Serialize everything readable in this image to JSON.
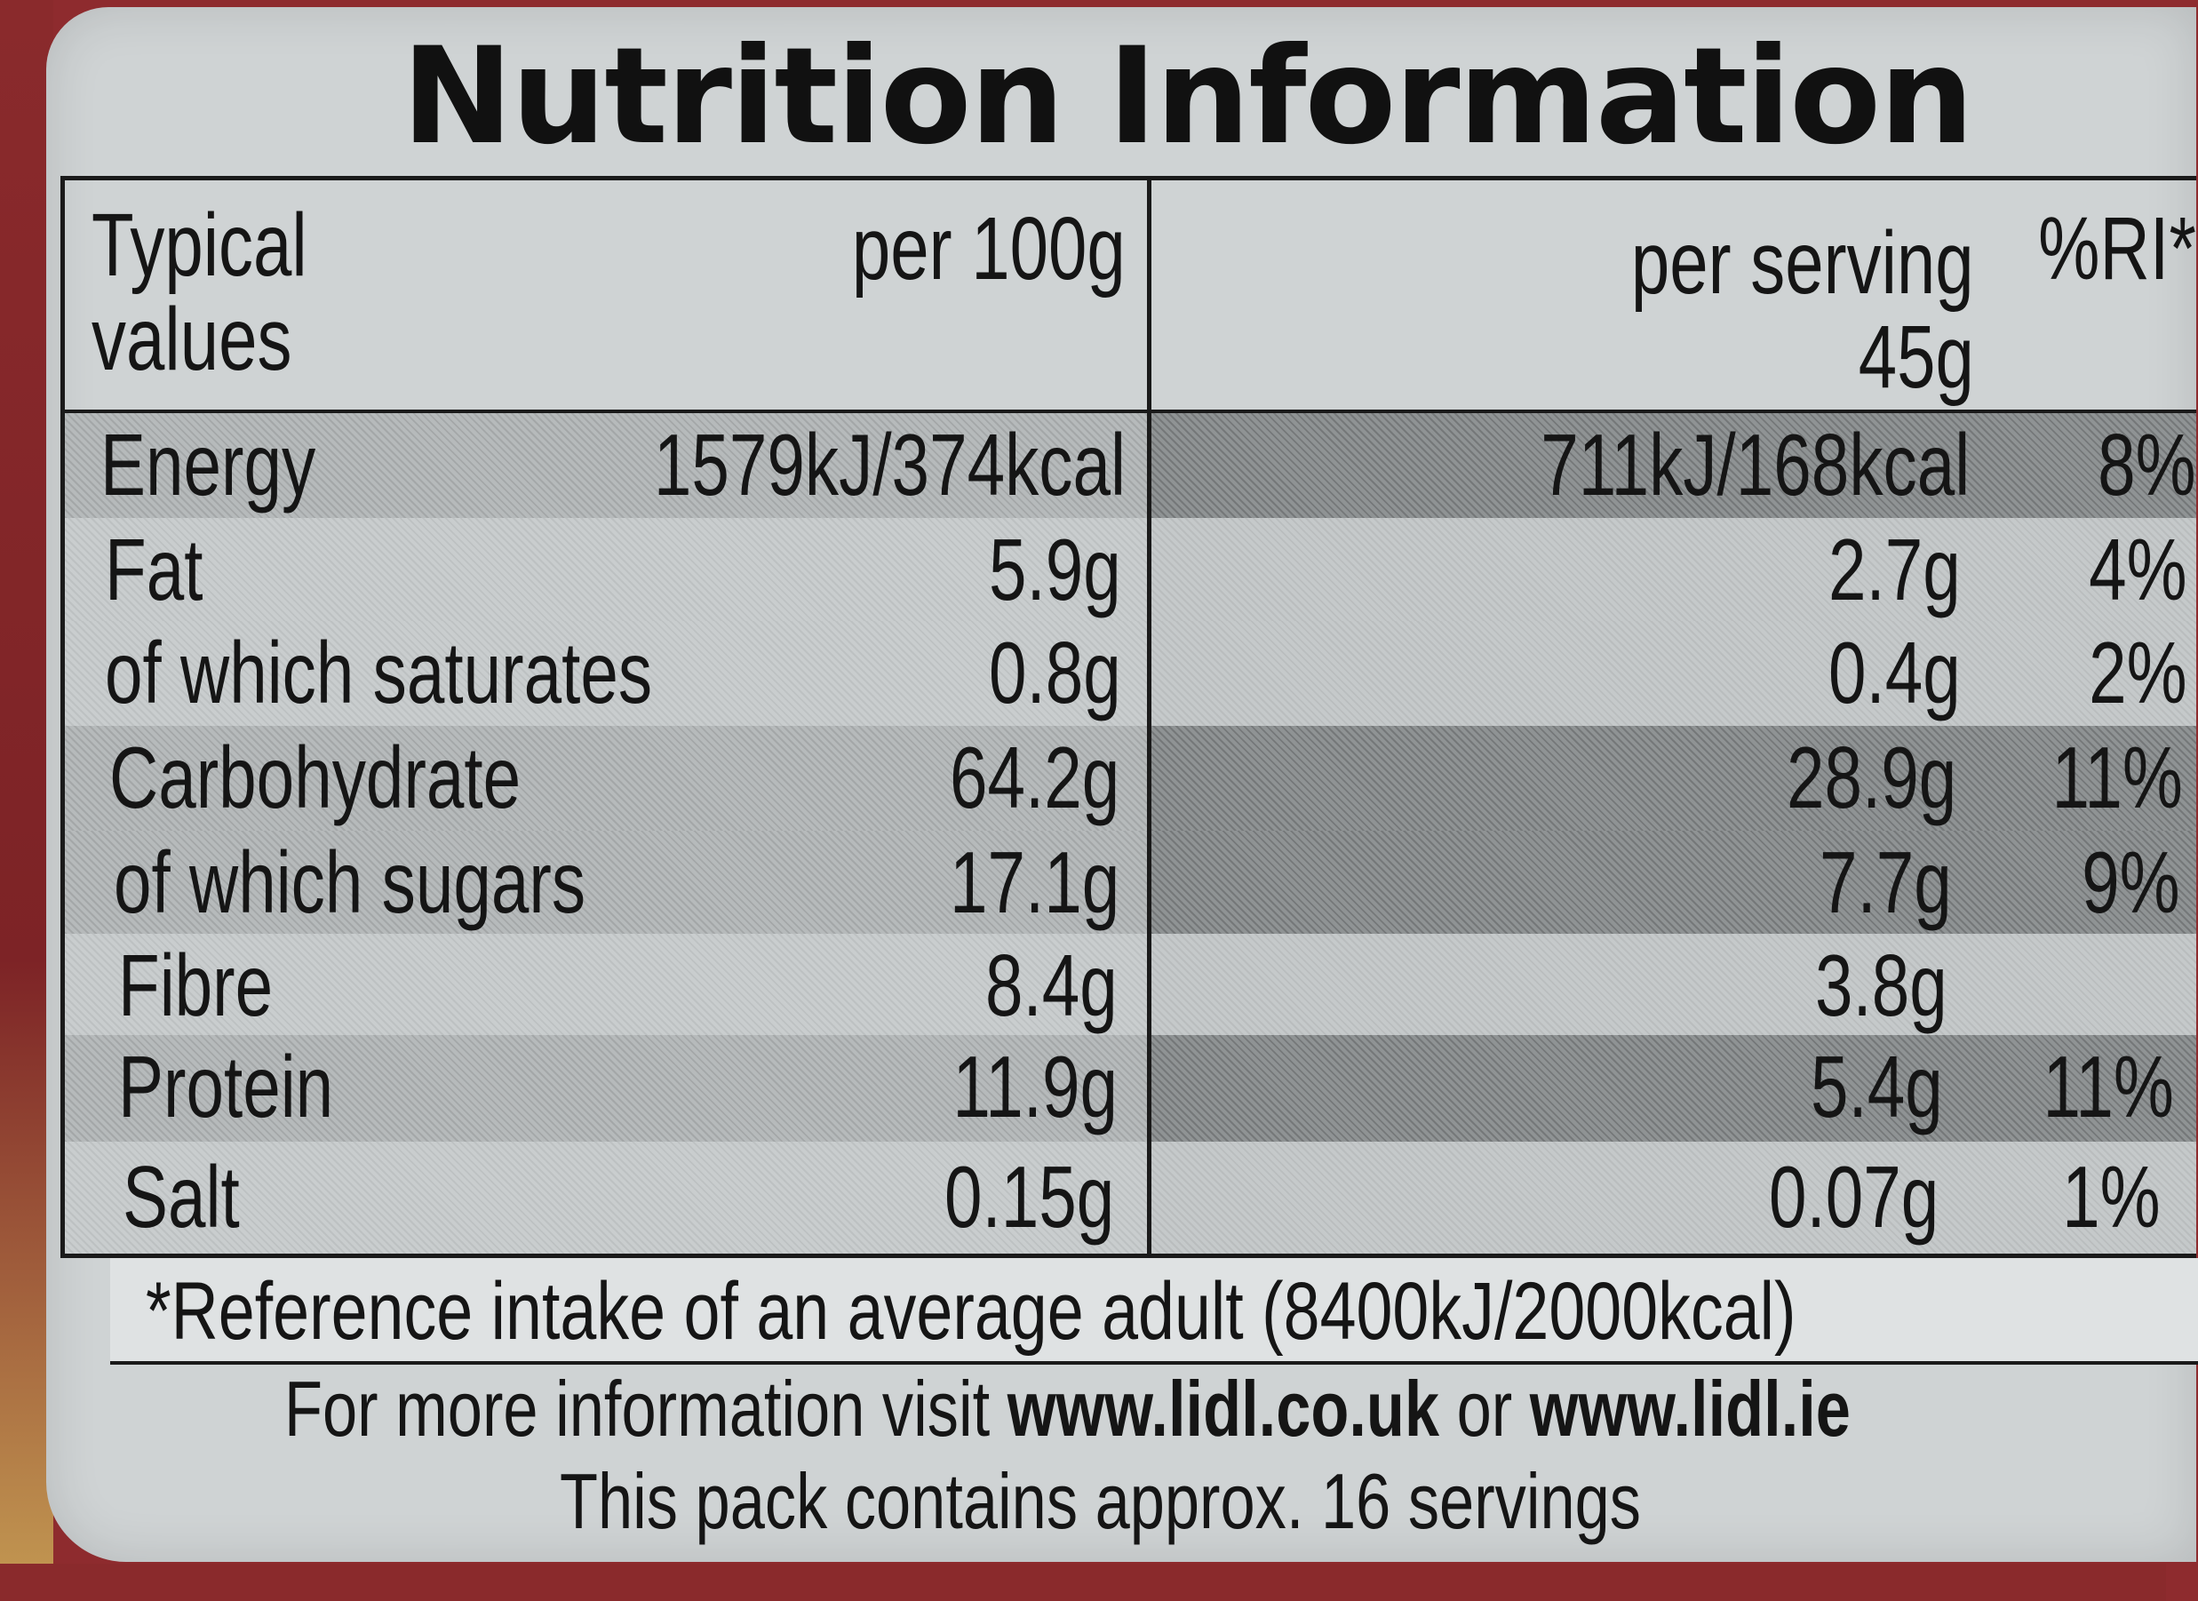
{
  "title": "Nutrition Information",
  "header": {
    "typical": "Typical",
    "values": "values",
    "per100": "per 100g",
    "per_serving": "per serving",
    "serving_size": "45g",
    "ri": "%RI*"
  },
  "rows": [
    {
      "name": "Energy",
      "per100": "1579kJ/374kcal",
      "serving": "711kJ/168kcal",
      "ri": "8%"
    },
    {
      "name": "Fat",
      "per100": "5.9g",
      "serving": "2.7g",
      "ri": "4%"
    },
    {
      "name": "of which saturates",
      "per100": "0.8g",
      "serving": "0.4g",
      "ri": "2%"
    },
    {
      "name": "Carbohydrate",
      "per100": "64.2g",
      "serving": "28.9g",
      "ri": "11%"
    },
    {
      "name": "of which sugars",
      "per100": "17.1g",
      "serving": "7.7g",
      "ri": "9%"
    },
    {
      "name": "Fibre",
      "per100": "8.4g",
      "serving": "3.8g",
      "ri": ""
    },
    {
      "name": "Protein",
      "per100": "11.9g",
      "serving": "5.4g",
      "ri": "11%"
    },
    {
      "name": "Salt",
      "per100": "0.15g",
      "serving": "0.07g",
      "ri": "1%"
    }
  ],
  "footnote": "*Reference intake of an average adult (8400kJ/2000kcal)",
  "more_info": {
    "prefix": "For more information visit ",
    "site1": "www.lidl.co.uk",
    "or": " or ",
    "site2": "www.lidl.ie"
  },
  "pack_info": "This pack contains approx. 16 servings"
}
